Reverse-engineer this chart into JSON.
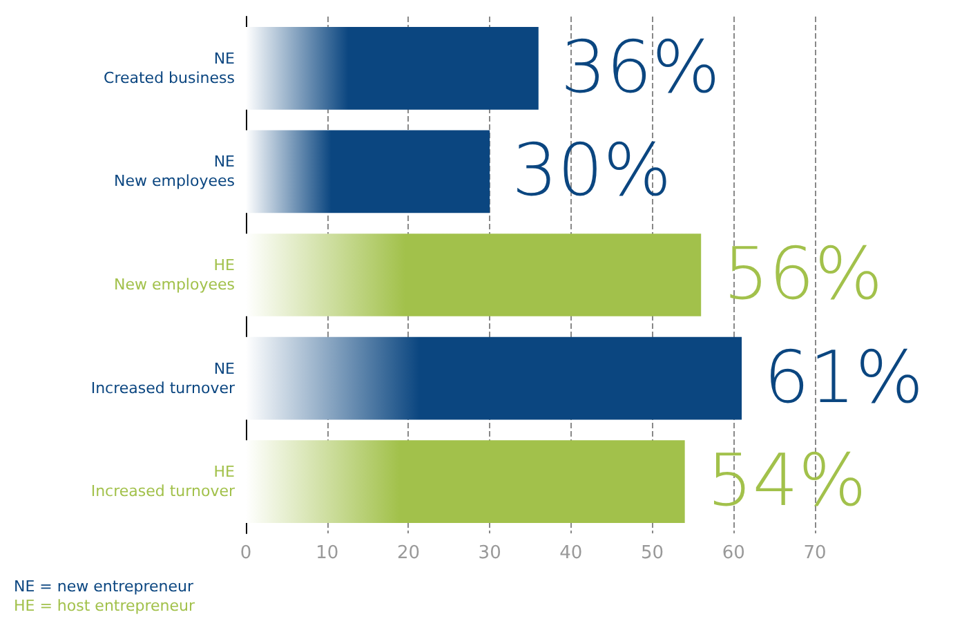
{
  "chart_data": {
    "type": "bar",
    "orientation": "horizontal",
    "categories": [
      "NE\nCreated business",
      "NE\nNew employees",
      "HE\nNew employees",
      "NE\nIncreased turnover",
      "HE\nIncreased turnover"
    ],
    "values": [
      36,
      30,
      56,
      61,
      54
    ],
    "value_labels": [
      "36%",
      "30%",
      "56%",
      "61%",
      "54%"
    ],
    "colors": [
      "#0b4680",
      "#0b4680",
      "#a2c14b",
      "#0b4680",
      "#a2c14b"
    ],
    "xlim": [
      0,
      70
    ],
    "xticks": [
      0,
      10,
      20,
      30,
      40,
      50,
      60,
      70
    ],
    "grid": "x",
    "annotations": [
      "NE  = new entrepreneur",
      "HE  = host entrepreneur"
    ]
  }
}
